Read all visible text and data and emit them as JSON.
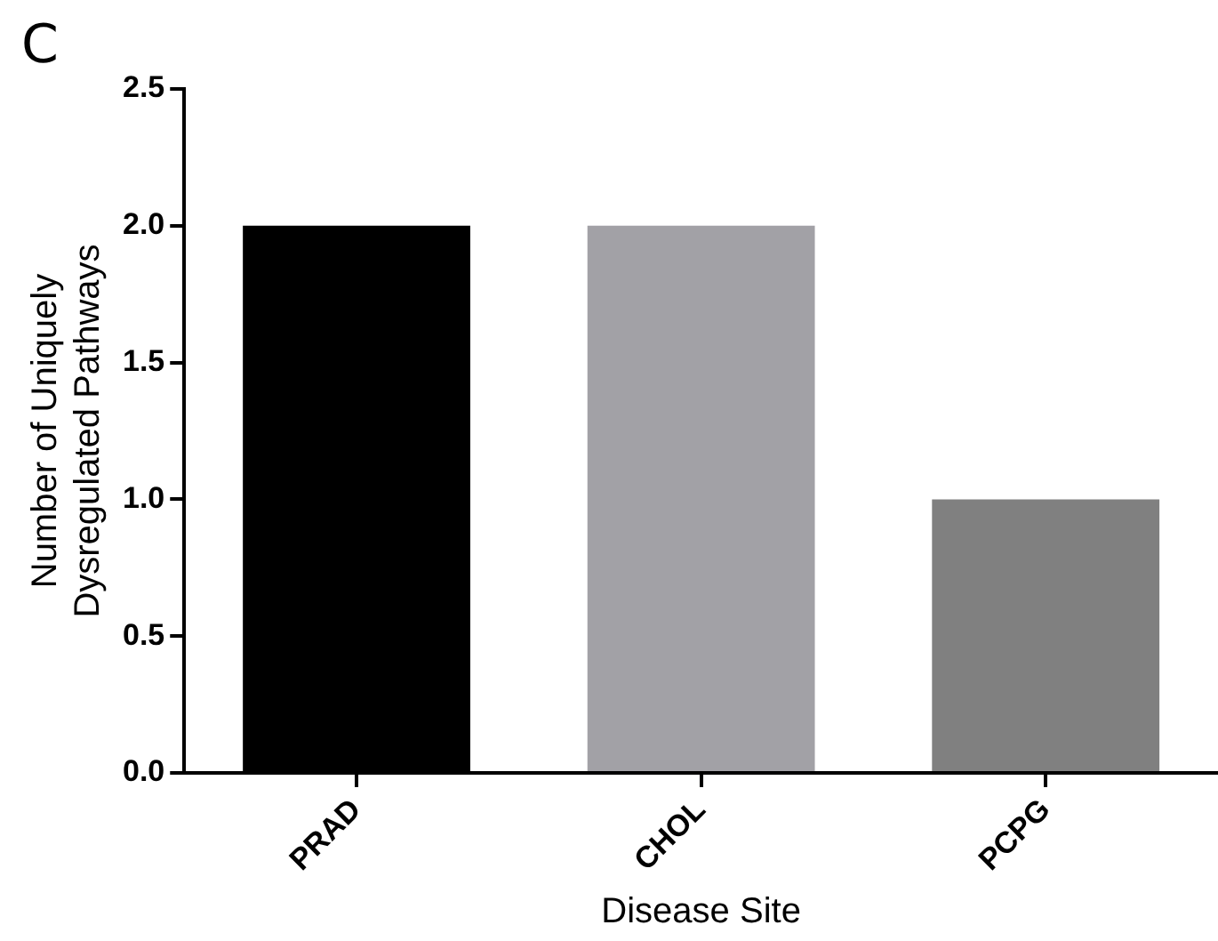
{
  "chart_data": {
    "type": "bar",
    "xlabel": "Disease Site",
    "ylabel": "Number of Uniquely\nDysregulated Pathways",
    "categories": [
      "PRAD",
      "CHOL",
      "PCPG"
    ],
    "values": [
      2,
      2,
      1
    ],
    "colors": [
      "#000000",
      "#a2a1a6",
      "#808080"
    ],
    "ylim": [
      0,
      2.5
    ],
    "yticks": [
      {
        "value": 0,
        "label": "0.0"
      },
      {
        "value": 0.5,
        "label": "0.5"
      },
      {
        "value": 1,
        "label": "1.0"
      },
      {
        "value": 1.5,
        "label": "1.5"
      },
      {
        "value": 2,
        "label": "2.0"
      },
      {
        "value": 2.5,
        "label": "2.5"
      }
    ],
    "annotations": [
      "C"
    ],
    "grid": false,
    "legend": false
  }
}
